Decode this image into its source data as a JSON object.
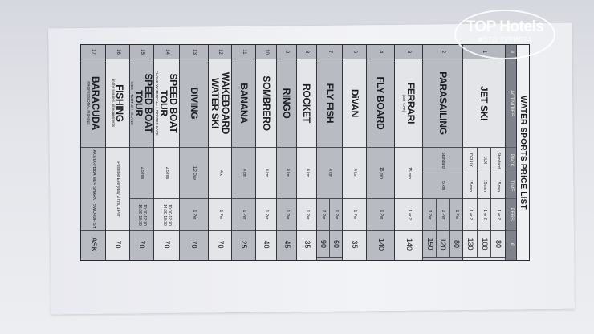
{
  "watermark": {
    "brand": "TOP Hotels",
    "caption": "ФОТО ТУРИСТА"
  },
  "title": "WATER SPORTS PRICE LIST",
  "headers": {
    "num": "#",
    "activity": "ACTIVITIES",
    "pack": "PACK",
    "time": "TIME",
    "pers": "PERS.",
    "price": "€"
  },
  "colors": {
    "header": "#7f828b",
    "row_dark": "#b8bbc2",
    "row_light": "#e3e5e9"
  },
  "rows": [
    {
      "num": "1",
      "name": "JET SKI",
      "options": [
        {
          "pack": "Standard",
          "time": "15 min",
          "pers": "1 or 2",
          "price": "80"
        },
        {
          "pack": "LUX",
          "time": "15 min",
          "pers": "1 or 2",
          "price": "100"
        },
        {
          "pack": "DELUX",
          "time": "15 min",
          "pers": "1 or 2",
          "price": "130"
        }
      ]
    },
    {
      "num": "2",
      "name": "PARASAILING",
      "pack": "Standard",
      "time": "5 km",
      "options": [
        {
          "pers": "1 Per",
          "price": "80"
        },
        {
          "pers": "2 Per",
          "price": "120"
        },
        {
          "pers": "3 Per",
          "price": "150"
        }
      ]
    },
    {
      "num": "3",
      "name": "FERRARI",
      "sub": "(JET CAR)",
      "time": "15 min",
      "pers": "1 or 2",
      "price": "140"
    },
    {
      "num": "4",
      "name": "FLY BOARD",
      "time": "15 min",
      "pers": "1 Per",
      "price": "140"
    },
    {
      "num": "6",
      "name": "DiVAN",
      "time": "4 km",
      "pers": "1 Per",
      "price": "35"
    },
    {
      "num": "7",
      "name": "FLY FISH",
      "time": "4 km",
      "options": [
        {
          "pers": "1 Per",
          "price": "60"
        },
        {
          "pers": "2 Per",
          "price": "90"
        }
      ]
    },
    {
      "num": "8",
      "name": "ROCKET",
      "time": "4 km",
      "pers": "1 Per",
      "price": "35"
    },
    {
      "num": "9",
      "name": "RINGO",
      "time": "4 km",
      "pers": "1 Per",
      "price": "45"
    },
    {
      "num": "10",
      "name": "SOMBRERO",
      "time": "4 km",
      "pers": "1 Per",
      "price": "40"
    },
    {
      "num": "11",
      "name": "BANANA",
      "time": "4 km",
      "pers": "1 Per",
      "price": "25"
    },
    {
      "num": "12",
      "name": "WAKEBOARD WATER SKI",
      "time": "4 x",
      "pers": "1 Per",
      "price": "70"
    },
    {
      "num": "13",
      "name": "DIVING",
      "time": "1/2 Day",
      "pers": "1 Per",
      "price": "70"
    },
    {
      "num": "14",
      "name": "SPEED BOAT TOUR",
      "sub": "FLYING WATERFALL + PIRATES CAVE",
      "time": "2.5 hrs",
      "pers": "10:00-12:30 14:00-18:30",
      "price": "70"
    },
    {
      "num": "15",
      "name": "SPEED BOAT TOUR",
      "sub": "SIDE + TURTLE + ISLAND",
      "time": "2.5 hrs",
      "pers": "10:00-12:30 16:00-18:30",
      "price": "70"
    },
    {
      "num": "16",
      "name": "FISHING",
      "sub": "in the sea incl. all equipments",
      "pers": "Possible Everyday 2 hrs, 1 Per",
      "price": "70"
    },
    {
      "num": "17",
      "name": "BARACUDA",
      "sub": "PROFESSIONAL FISHING",
      "pers": "АКУЛА-РЫБА МЕЧ SHARK - SWORDFISH",
      "price": "ASK"
    }
  ]
}
